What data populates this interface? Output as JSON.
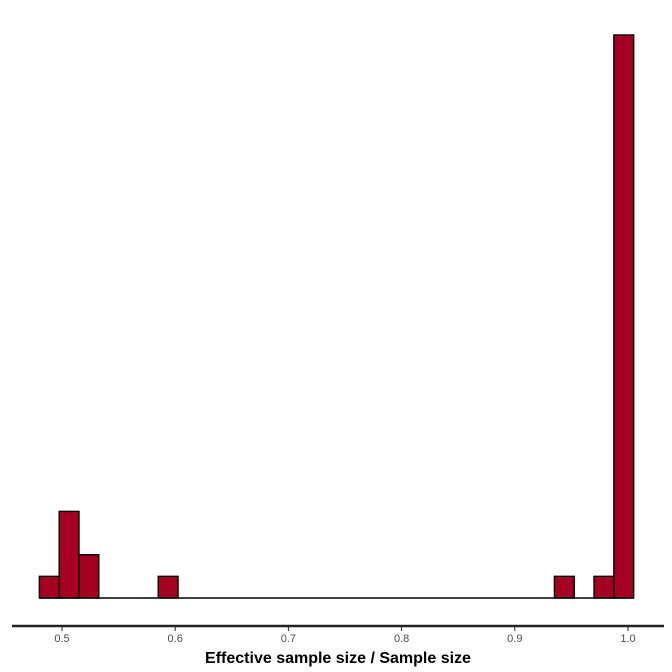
{
  "chart_data": {
    "type": "bar",
    "subtype": "histogram",
    "xlabel": "Effective sample size / Sample size",
    "ylabel": "",
    "xlim": [
      0.46,
      1.04
    ],
    "ylim": [
      0,
      26
    ],
    "x_ticks": [
      0.5,
      0.6,
      0.7,
      0.8,
      0.9,
      1.0
    ],
    "x_tick_labels": [
      "0.5",
      "0.6",
      "0.7",
      "0.8",
      "0.9",
      "1.0"
    ],
    "bin_width": 0.0175,
    "bins": [
      {
        "start": 0.48,
        "count": 1
      },
      {
        "start": 0.4975,
        "count": 4
      },
      {
        "start": 0.515,
        "count": 2
      },
      {
        "start": 0.5325,
        "count": 0
      },
      {
        "start": 0.55,
        "count": 0
      },
      {
        "start": 0.5675,
        "count": 0
      },
      {
        "start": 0.585,
        "count": 1
      },
      {
        "start": 0.6025,
        "count": 0
      },
      {
        "start": 0.935,
        "count": 1
      },
      {
        "start": 0.9525,
        "count": 0
      },
      {
        "start": 0.97,
        "count": 1
      },
      {
        "start": 0.9875,
        "count": 26
      }
    ],
    "grid": false,
    "legend": "none",
    "colors": {
      "bar_fill": "#a50021",
      "bar_stroke": "#000000",
      "axis_line": "#222222",
      "tick_text": "#4d4d4d"
    }
  }
}
